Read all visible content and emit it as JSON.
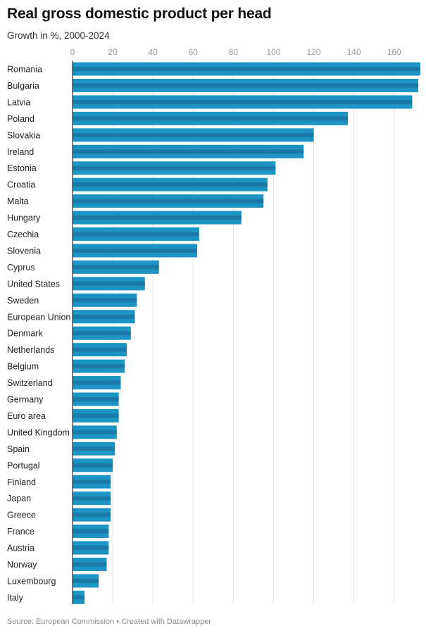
{
  "chart_data": {
    "type": "bar",
    "orientation": "horizontal",
    "title": "Real gross domestic product per head",
    "subtitle": "Growth in %, 2000-2024",
    "source": "Source: European Commission • Created with Datawrapper",
    "xlim": [
      0,
      172
    ],
    "ticks": [
      0,
      20,
      40,
      60,
      80,
      100,
      120,
      140,
      160
    ],
    "grid": true,
    "bar_color": "#1c94c4",
    "bar_inner_color": "#1a79a6",
    "axis_color": "#333333",
    "categories": [
      "Romania",
      "Bulgaria",
      "Latvia",
      "Poland",
      "Slovakia",
      "Ireland",
      "Estonia",
      "Croatia",
      "Malta",
      "Hungary",
      "Czechia",
      "Slovenia",
      "Cyprus",
      "United States",
      "Sweden",
      "European Union",
      "Denmark",
      "Netherlands",
      "Belgium",
      "Switzerland",
      "Germany",
      "Euro area",
      "United Kingdom",
      "Spain",
      "Portugal",
      "Finland",
      "Japan",
      "Greece",
      "France",
      "Austria",
      "Norway",
      "Luxembourg",
      "Italy"
    ],
    "values": [
      173,
      172,
      169,
      137,
      120,
      115,
      101,
      97,
      95,
      84,
      63,
      62,
      43,
      36,
      32,
      31,
      29,
      27,
      26,
      24,
      23,
      23,
      22,
      21,
      20,
      19,
      19,
      19,
      18,
      18,
      17,
      13,
      6
    ]
  }
}
